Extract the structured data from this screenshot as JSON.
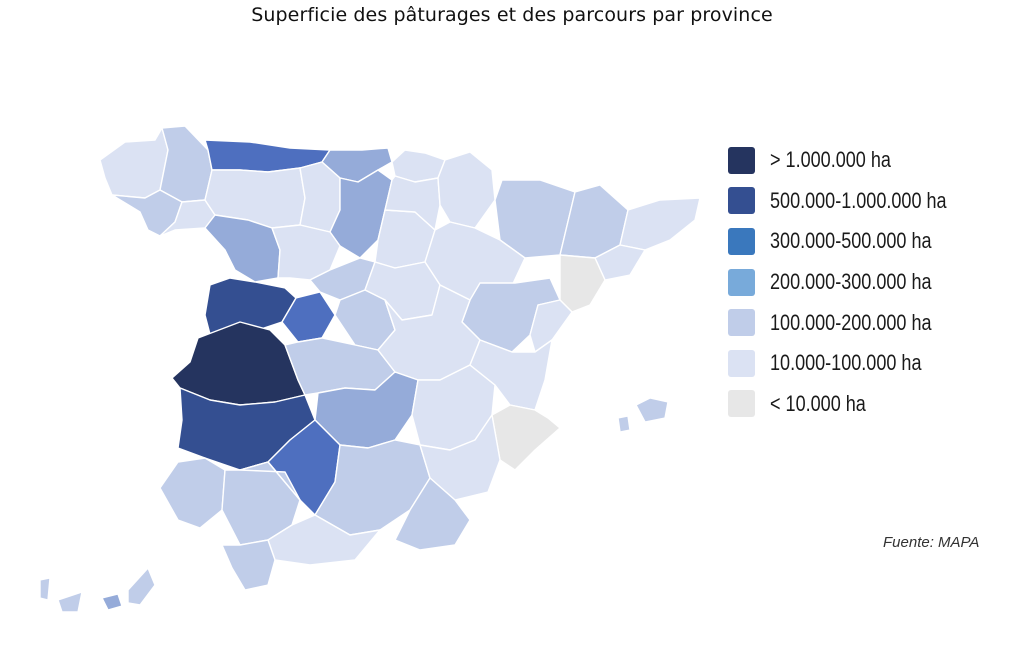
{
  "title": "Superficie des pâturages et des parcours par province",
  "legend": {
    "items": [
      {
        "label": "> 1.000.000 ha",
        "color": "#25345f"
      },
      {
        "label": "500.000-1.000.000 ha",
        "color": "#344f91"
      },
      {
        "label": "300.000-500.000 ha",
        "color": "#3a78bd"
      },
      {
        "label": "200.000-300.000 ha",
        "color": "#78aada"
      },
      {
        "label": "100.000-200.000 ha",
        "color": "#c0cde9"
      },
      {
        "label": "10.000-100.000 ha",
        "color": "#dbe2f3"
      },
      {
        "label": "< 10.000 ha",
        "color": "#e7e7e7"
      }
    ]
  },
  "source": "Fuente: MAPA"
}
